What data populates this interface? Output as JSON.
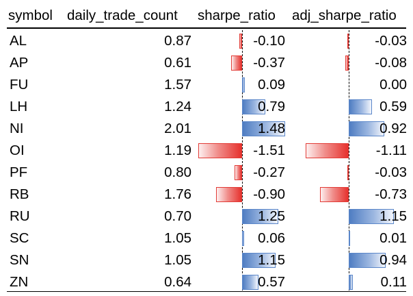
{
  "table": {
    "headers": [
      "symbol",
      "daily_trade_count",
      "sharpe_ratio",
      "adj_sharpe_ratio"
    ],
    "rows": [
      {
        "symbol": "AL",
        "daily_trade_count": "0.87",
        "sharpe_ratio": "-0.10",
        "adj_sharpe_ratio": "-0.03"
      },
      {
        "symbol": "AP",
        "daily_trade_count": "0.61",
        "sharpe_ratio": "-0.37",
        "adj_sharpe_ratio": "-0.08"
      },
      {
        "symbol": "FU",
        "daily_trade_count": "1.57",
        "sharpe_ratio": "0.09",
        "adj_sharpe_ratio": "0.00"
      },
      {
        "symbol": "LH",
        "daily_trade_count": "1.24",
        "sharpe_ratio": "0.79",
        "adj_sharpe_ratio": "0.59"
      },
      {
        "symbol": "NI",
        "daily_trade_count": "2.01",
        "sharpe_ratio": "1.48",
        "adj_sharpe_ratio": "0.92"
      },
      {
        "symbol": "OI",
        "daily_trade_count": "1.19",
        "sharpe_ratio": "-1.51",
        "adj_sharpe_ratio": "-1.11"
      },
      {
        "symbol": "PF",
        "daily_trade_count": "0.80",
        "sharpe_ratio": "-0.27",
        "adj_sharpe_ratio": "-0.03"
      },
      {
        "symbol": "RB",
        "daily_trade_count": "1.76",
        "sharpe_ratio": "-0.90",
        "adj_sharpe_ratio": "-0.73"
      },
      {
        "symbol": "RU",
        "daily_trade_count": "0.70",
        "sharpe_ratio": "1.25",
        "adj_sharpe_ratio": "1.15"
      },
      {
        "symbol": "SC",
        "daily_trade_count": "1.05",
        "sharpe_ratio": "0.06",
        "adj_sharpe_ratio": "0.01"
      },
      {
        "symbol": "SN",
        "daily_trade_count": "1.05",
        "sharpe_ratio": "1.15",
        "adj_sharpe_ratio": "0.94"
      },
      {
        "symbol": "ZN",
        "daily_trade_count": "0.64",
        "sharpe_ratio": "0.57",
        "adj_sharpe_ratio": "0.11"
      }
    ]
  },
  "data_bars": {
    "positive_color": "#4f7dc2",
    "negative_color": "#e6322e"
  }
}
